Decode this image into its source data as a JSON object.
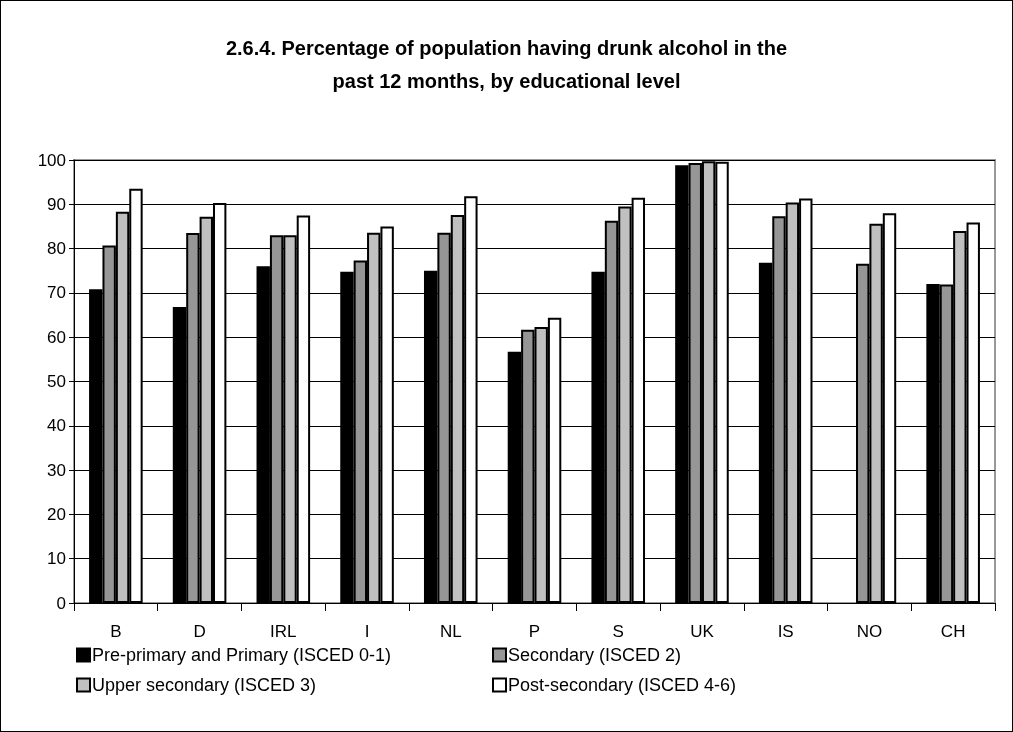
{
  "chart_data": {
    "type": "bar",
    "title": "2.6.4. Percentage of population having drunk alcohol in the\npast 12 months, by educational level",
    "categories": [
      "B",
      "D",
      "IRL",
      "I",
      "NL",
      "P",
      "S",
      "UK",
      "IS",
      "NO",
      "CH"
    ],
    "series": [
      {
        "name": "Pre-primary and Primary (ISCED 0-1)",
        "color": "#000000",
        "values": [
          70.8,
          66.8,
          76,
          74.8,
          75,
          56.7,
          74.8,
          98.8,
          76.8,
          null,
          72
        ]
      },
      {
        "name": "Secondary (ISCED 2)",
        "color": "#969696",
        "values": [
          80.7,
          83.5,
          83,
          77.3,
          83.6,
          61.7,
          86.3,
          99.3,
          87.3,
          76.6,
          71.9
        ]
      },
      {
        "name": "Upper secondary (ISCED 3)",
        "color": "#c0c0c0",
        "values": [
          88.3,
          87.2,
          83,
          83.6,
          87.6,
          62.3,
          89.5,
          99.7,
          90.4,
          85.6,
          84
        ]
      },
      {
        "name": "Post-secondary (ISCED 4-6)",
        "color": "#ffffff",
        "values": [
          93.5,
          90.3,
          87.5,
          85,
          91.8,
          64.4,
          91.5,
          99.6,
          91.3,
          88,
          85.9
        ]
      }
    ],
    "ylim": [
      0,
      100
    ],
    "yticks": [
      0,
      10,
      20,
      30,
      40,
      50,
      60,
      70,
      80,
      90,
      100
    ],
    "grid": "y",
    "legend": "bottom"
  }
}
